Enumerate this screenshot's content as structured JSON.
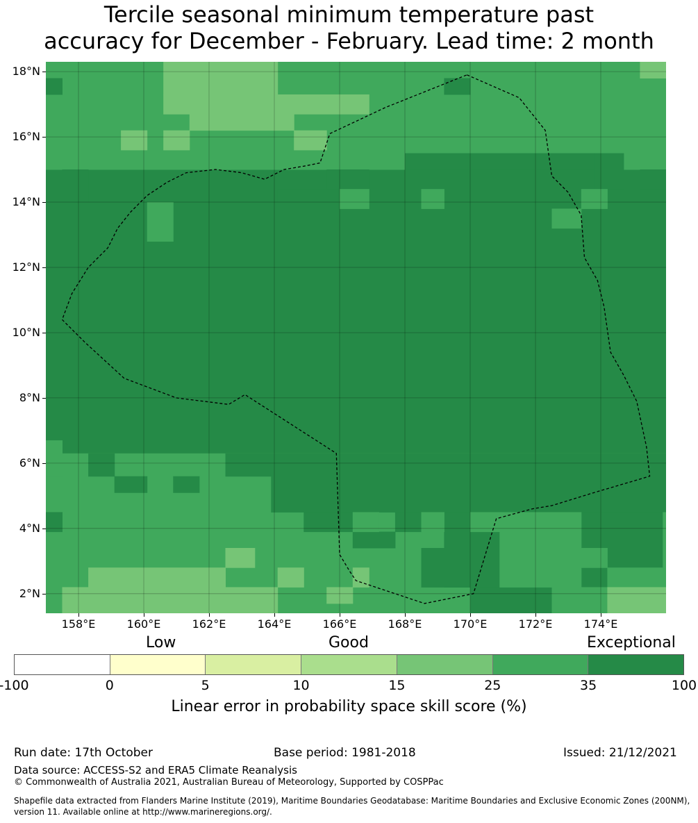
{
  "title_line1": "Tercile seasonal minimum temperature past",
  "title_line2": "accuracy for December - February. Lead time: 2 month",
  "colors": {
    "c100": "#258a47",
    "c35": "#40a95c",
    "c25": "#76c576",
    "c15": "#aade8d",
    "c10": "#d9efa2",
    "c5": "#ffffcc",
    "c0": "#ffffff"
  },
  "map": {
    "lon_range": [
      157,
      176
    ],
    "lat_range": [
      1.4,
      18.3
    ],
    "lat_ticks": [
      {
        "value": 18,
        "label": "18°N"
      },
      {
        "value": 16,
        "label": "16°N"
      },
      {
        "value": 14,
        "label": "14°N"
      },
      {
        "value": 12,
        "label": "12°N"
      },
      {
        "value": 10,
        "label": "10°N"
      },
      {
        "value": 8,
        "label": "8°N"
      },
      {
        "value": 6,
        "label": "6°N"
      },
      {
        "value": 4,
        "label": "4°N"
      },
      {
        "value": 2,
        "label": "2°N"
      }
    ],
    "lon_ticks": [
      {
        "value": 158,
        "label": "158°E"
      },
      {
        "value": 160,
        "label": "160°E"
      },
      {
        "value": 162,
        "label": "162°E"
      },
      {
        "value": 164,
        "label": "164°E"
      },
      {
        "value": 166,
        "label": "166°E"
      },
      {
        "value": 168,
        "label": "168°E"
      },
      {
        "value": 170,
        "label": "170°E"
      },
      {
        "value": 172,
        "label": "172°E"
      },
      {
        "value": 174,
        "label": "174°E"
      }
    ],
    "cells": [
      {
        "lon": [
          157,
          176
        ],
        "lat": [
          1.4,
          18.3
        ],
        "cls": "c100"
      },
      {
        "lon": [
          157,
          176
        ],
        "lat": [
          15,
          18.3
        ],
        "cls": "c35"
      },
      {
        "lon": [
          157,
          176
        ],
        "lat": [
          1.4,
          6.3
        ],
        "cls": "c35"
      },
      {
        "lon": [
          160.6,
          164.1
        ],
        "lat": [
          17.3,
          18.3
        ],
        "cls": "c25"
      },
      {
        "lon": [
          160.6,
          162.3
        ],
        "lat": [
          16.7,
          17.3
        ],
        "cls": "c25"
      },
      {
        "lon": [
          161.4,
          166.9
        ],
        "lat": [
          16.7,
          17.3
        ],
        "cls": "c25"
      },
      {
        "lon": [
          161.4,
          164.6
        ],
        "lat": [
          16.2,
          16.7
        ],
        "cls": "c25"
      },
      {
        "lon": [
          164.6,
          165.6
        ],
        "lat": [
          15.6,
          16.2
        ],
        "cls": "c25"
      },
      {
        "lon": [
          159.3,
          160.1
        ],
        "lat": [
          15.6,
          16.2
        ],
        "cls": "c25"
      },
      {
        "lon": [
          160.6,
          161.4
        ],
        "lat": [
          15.6,
          16.2
        ],
        "cls": "c25"
      },
      {
        "lon": [
          175.2,
          176
        ],
        "lat": [
          17.8,
          18.3
        ],
        "cls": "c25"
      },
      {
        "lon": [
          157,
          157.5
        ],
        "lat": [
          17.3,
          17.8
        ],
        "cls": "c100"
      },
      {
        "lon": [
          169.2,
          170
        ],
        "lat": [
          17.3,
          17.8
        ],
        "cls": "c100"
      },
      {
        "lon": [
          168,
          173.8
        ],
        "lat": [
          15,
          15.5
        ],
        "cls": "c100"
      },
      {
        "lon": [
          173.8,
          174.7
        ],
        "lat": [
          14.4,
          15.5
        ],
        "cls": "c100"
      },
      {
        "lon": [
          157.5,
          158.3
        ],
        "lat": [
          14,
          15
        ],
        "cls": "c100"
      },
      {
        "lon": [
          165.6,
          166.9
        ],
        "lat": [
          14.4,
          15
        ],
        "cls": "c100"
      },
      {
        "lon": [
          164.1,
          166.9
        ],
        "lat": [
          14,
          14.4
        ],
        "cls": "c100"
      },
      {
        "lon": [
          175.2,
          176
        ],
        "lat": [
          14.4,
          15
        ],
        "cls": "c100"
      },
      {
        "lon": [
          160.1,
          160.9
        ],
        "lat": [
          12.8,
          14
        ],
        "cls": "c35"
      },
      {
        "lon": [
          166,
          166.9
        ],
        "lat": [
          13.8,
          14.4
        ],
        "cls": "c35"
      },
      {
        "lon": [
          168.5,
          169.2
        ],
        "lat": [
          13.8,
          14.4
        ],
        "cls": "c35"
      },
      {
        "lon": [
          172.5,
          173.4
        ],
        "lat": [
          13.2,
          13.8
        ],
        "cls": "c35"
      },
      {
        "lon": [
          173.4,
          174.2
        ],
        "lat": [
          13.8,
          14.4
        ],
        "cls": "c35"
      },
      {
        "lon": [
          157,
          157.5
        ],
        "lat": [
          5.6,
          6.7
        ],
        "cls": "c35"
      },
      {
        "lon": [
          158.3,
          159.1
        ],
        "lat": [
          5.6,
          6.3
        ],
        "cls": "c100"
      },
      {
        "lon": [
          159.1,
          160.1
        ],
        "lat": [
          5.1,
          5.6
        ],
        "cls": "c100"
      },
      {
        "lon": [
          160.9,
          161.7
        ],
        "lat": [
          5.1,
          5.6
        ],
        "cls": "c100"
      },
      {
        "lon": [
          162.5,
          176
        ],
        "lat": [
          5.6,
          6.3
        ],
        "cls": "c100"
      },
      {
        "lon": [
          163.9,
          176
        ],
        "lat": [
          4.5,
          5.6
        ],
        "cls": "c100"
      },
      {
        "lon": [
          164.9,
          166.4
        ],
        "lat": [
          3.9,
          4.5
        ],
        "cls": "c100"
      },
      {
        "lon": [
          166.4,
          167.7
        ],
        "lat": [
          3.4,
          3.9
        ],
        "cls": "c100"
      },
      {
        "lon": [
          167.7,
          168.5
        ],
        "lat": [
          3.9,
          4.5
        ],
        "cls": "c100"
      },
      {
        "lon": [
          169.2,
          176
        ],
        "lat": [
          2.2,
          4.5
        ],
        "cls": "c100"
      },
      {
        "lon": [
          168.5,
          170
        ],
        "lat": [
          2.2,
          3.4
        ],
        "cls": "c100"
      },
      {
        "lon": [
          170,
          172.5
        ],
        "lat": [
          1.4,
          2.2
        ],
        "cls": "c100"
      },
      {
        "lon": [
          170,
          173.4
        ],
        "lat": [
          3.9,
          4.5
        ],
        "cls": "c35"
      },
      {
        "lon": [
          170.9,
          173.4
        ],
        "lat": [
          2.2,
          3.9
        ],
        "cls": "c35"
      },
      {
        "lon": [
          173.4,
          174.2
        ],
        "lat": [
          2.8,
          3.4
        ],
        "cls": "c35"
      },
      {
        "lon": [
          174.2,
          175.9
        ],
        "lat": [
          2.2,
          2.8
        ],
        "cls": "c35"
      },
      {
        "lon": [
          175.9,
          176
        ],
        "lat": [
          2.2,
          4.5
        ],
        "cls": "c35"
      },
      {
        "lon": [
          166.4,
          167.2
        ],
        "lat": [
          3.9,
          4.5
        ],
        "cls": "c35"
      },
      {
        "lon": [
          168.5,
          169.2
        ],
        "lat": [
          3.9,
          4.5
        ],
        "cls": "c35"
      },
      {
        "lon": [
          172.5,
          176
        ],
        "lat": [
          1.4,
          2.2
        ],
        "cls": "c35"
      },
      {
        "lon": [
          174.2,
          176
        ],
        "lat": [
          1.4,
          2.2
        ],
        "cls": "c25"
      },
      {
        "lon": [
          157,
          157.5
        ],
        "lat": [
          3.9,
          4.5
        ],
        "cls": "c100"
      },
      {
        "lon": [
          158.3,
          162.5
        ],
        "lat": [
          2.2,
          2.8
        ],
        "cls": "c25"
      },
      {
        "lon": [
          157.5,
          164.1
        ],
        "lat": [
          1.4,
          2.2
        ],
        "cls": "c25"
      },
      {
        "lon": [
          162.5,
          163.4
        ],
        "lat": [
          2.8,
          3.4
        ],
        "cls": "c25"
      },
      {
        "lon": [
          164.1,
          164.9
        ],
        "lat": [
          2.2,
          2.8
        ],
        "cls": "c25"
      },
      {
        "lon": [
          165.6,
          166.4
        ],
        "lat": [
          1.7,
          2.2
        ],
        "cls": "c25"
      },
      {
        "lon": [
          166.4,
          166.9
        ],
        "lat": [
          2.2,
          2.8
        ],
        "cls": "c25"
      }
    ],
    "eez": [
      [
        169.9,
        17.9
      ],
      [
        171.5,
        17.2
      ],
      [
        172.3,
        16.2
      ],
      [
        172.5,
        14.8
      ],
      [
        173.0,
        14.3
      ],
      [
        173.4,
        13.6
      ],
      [
        173.5,
        12.3
      ],
      [
        173.9,
        11.6
      ],
      [
        174.1,
        10.8
      ],
      [
        174.3,
        9.4
      ],
      [
        174.7,
        8.7
      ],
      [
        175.1,
        7.9
      ],
      [
        175.4,
        6.5
      ],
      [
        175.5,
        5.6
      ],
      [
        173.8,
        5.1
      ],
      [
        172.5,
        4.7
      ],
      [
        171.9,
        4.6
      ],
      [
        170.8,
        4.3
      ],
      [
        170.1,
        2.0
      ],
      [
        168.6,
        1.7
      ],
      [
        166.5,
        2.4
      ],
      [
        166.3,
        2.7
      ],
      [
        166.0,
        3.2
      ],
      [
        165.9,
        6.3
      ],
      [
        163.1,
        8.1
      ],
      [
        162.6,
        7.8
      ],
      [
        161.0,
        8.0
      ],
      [
        159.4,
        8.6
      ],
      [
        158.2,
        9.7
      ],
      [
        157.5,
        10.4
      ],
      [
        157.8,
        11.2
      ],
      [
        158.3,
        12.0
      ],
      [
        158.9,
        12.6
      ],
      [
        159.2,
        13.2
      ],
      [
        159.6,
        13.7
      ],
      [
        160.1,
        14.2
      ],
      [
        160.7,
        14.6
      ],
      [
        161.3,
        14.9
      ],
      [
        162.2,
        15.0
      ],
      [
        163.0,
        14.9
      ],
      [
        163.7,
        14.7
      ],
      [
        164.3,
        15.0
      ],
      [
        164.9,
        15.1
      ],
      [
        165.4,
        15.2
      ],
      [
        165.5,
        15.5
      ],
      [
        165.6,
        15.8
      ],
      [
        165.7,
        16.1
      ],
      [
        167.4,
        16.9
      ],
      [
        168.9,
        17.5
      ],
      [
        169.9,
        17.9
      ]
    ]
  },
  "colorbar": {
    "cat_low": "Low",
    "cat_good": "Good",
    "cat_exceptional": "Exceptional",
    "ticks": [
      "-100",
      "0",
      "5",
      "10",
      "15",
      "25",
      "35",
      "100"
    ],
    "label": "Linear error in probability space skill score (%)"
  },
  "footer": {
    "run_date": "Run date: 17th October",
    "base_period": "Base period: 1981-2018",
    "issued": "Issued: 21/12/2021",
    "data_source": "Data source: ACCESS-S2 and ERA5 Climate Reanalysis",
    "copyright": "© Commonwealth of Australia 2021, Australian Bureau of Meteorology, Supported by COSPPac",
    "shapefile_1": "Shapefile data extracted from Flanders Marine Institute (2019), Maritime Boundaries Geodatabase: Maritime Boundaries and Exclusive Economic Zones (200NM),",
    "shapefile_2": "version 11. Available online at http://www.marineregions.org/."
  }
}
